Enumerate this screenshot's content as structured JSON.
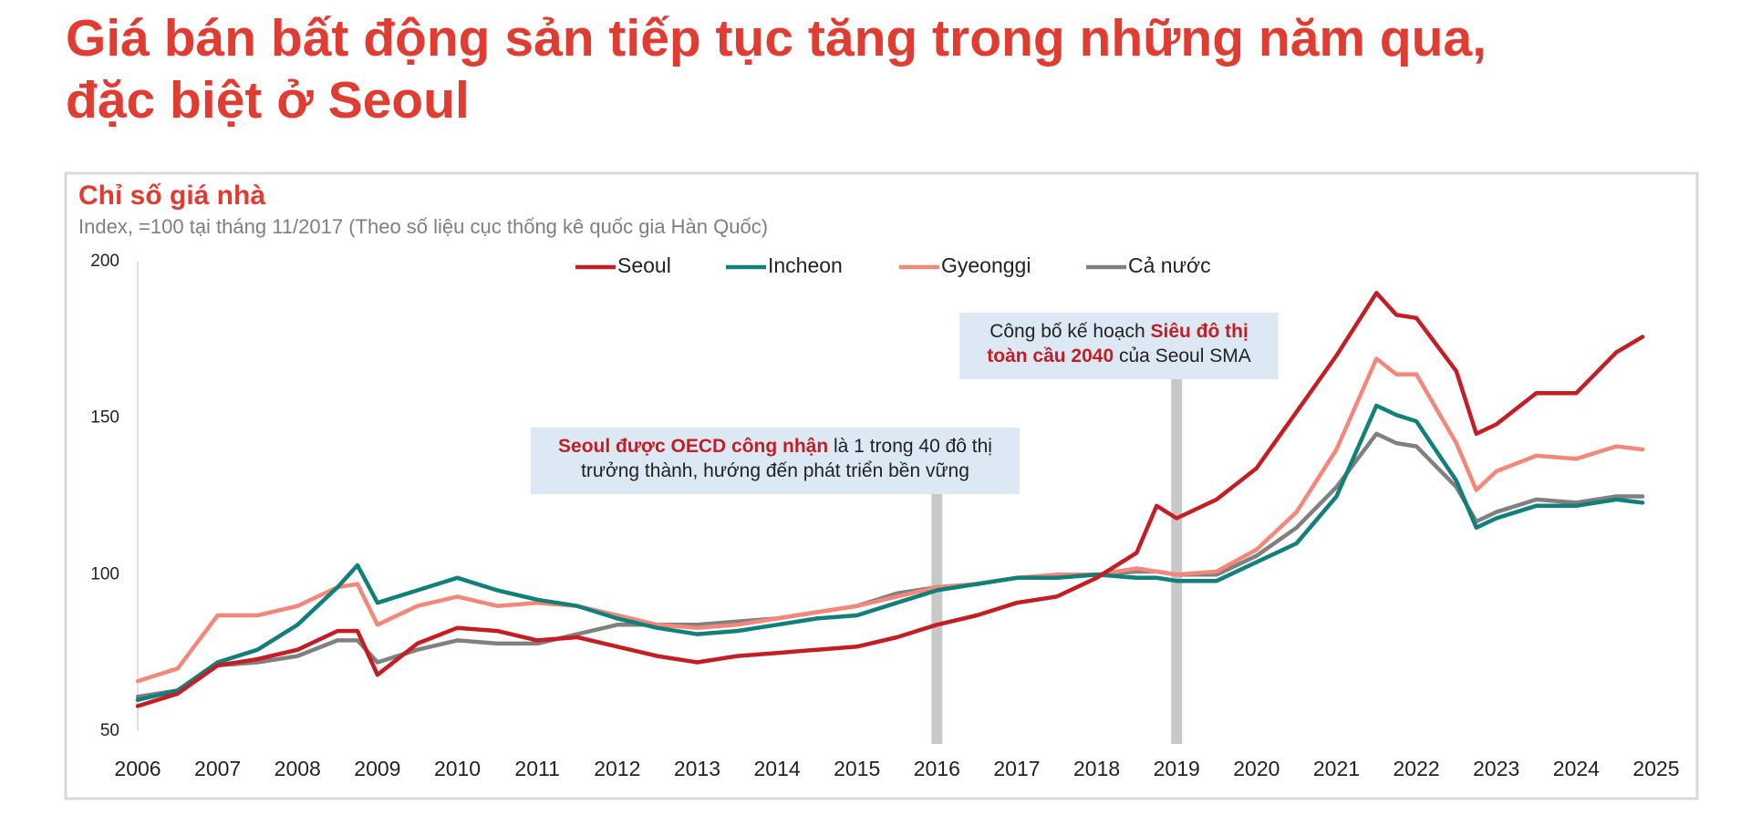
{
  "headline": [
    "Giá bán bất động sản tiếp tục tăng trong những năm qua,",
    "đặc biệt ở Seoul"
  ],
  "chart_data": {
    "type": "line",
    "title": "Chỉ số giá nhà",
    "subtitle": "Index, =100 tại tháng 11/2017 (Theo số liệu cục thống kê quốc gia Hàn Quốc)",
    "x": [
      2006,
      2006.5,
      2007,
      2007.5,
      2008,
      2008.5,
      2008.75,
      2009,
      2009.5,
      2010,
      2010.5,
      2011,
      2011.5,
      2012,
      2012.5,
      2013,
      2013.5,
      2014,
      2014.5,
      2015,
      2015.5,
      2016,
      2016.5,
      2017,
      2017.5,
      2018,
      2018.5,
      2018.75,
      2019,
      2019.5,
      2020,
      2020.5,
      2021,
      2021.5,
      2021.75,
      2022,
      2022.5,
      2022.75,
      2023,
      2023.5,
      2024,
      2024.5,
      2024.83
    ],
    "series": [
      {
        "name": "Seoul",
        "color": "#c41e24",
        "values": [
          58,
          62,
          71,
          73,
          76,
          82,
          82,
          68,
          78,
          83,
          82,
          79,
          80,
          77,
          74,
          72,
          74,
          75,
          76,
          77,
          80,
          84,
          87,
          91,
          93,
          99,
          107,
          122,
          118,
          124,
          134,
          152,
          170,
          190,
          183,
          182,
          165,
          145,
          148,
          158,
          158,
          171,
          176
        ]
      },
      {
        "name": "Incheon",
        "color": "#11807a",
        "values": [
          60,
          63,
          72,
          76,
          84,
          96,
          103,
          91,
          95,
          99,
          95,
          92,
          90,
          86,
          83,
          81,
          82,
          84,
          86,
          87,
          91,
          95,
          97,
          99,
          99,
          100,
          99,
          99,
          98,
          98,
          104,
          110,
          125,
          154,
          151,
          149,
          130,
          115,
          118,
          122,
          122,
          124,
          123
        ]
      },
      {
        "name": "Gyeonggi",
        "color": "#f4877a",
        "values": [
          66,
          70,
          87,
          87,
          90,
          96,
          97,
          84,
          90,
          93,
          90,
          91,
          90,
          87,
          84,
          83,
          84,
          86,
          88,
          90,
          93,
          96,
          97,
          99,
          100,
          100,
          102,
          101,
          100,
          101,
          108,
          120,
          140,
          169,
          164,
          164,
          142,
          127,
          133,
          138,
          137,
          141,
          140
        ]
      },
      {
        "name": "Cả nước",
        "color": "#808080",
        "values": [
          61,
          63,
          71,
          72,
          74,
          79,
          79,
          72,
          76,
          79,
          78,
          78,
          81,
          84,
          84,
          84,
          85,
          86,
          88,
          90,
          94,
          96,
          97,
          99,
          99,
          100,
          101,
          101,
          100,
          100,
          106,
          115,
          128,
          145,
          142,
          141,
          128,
          117,
          120,
          124,
          123,
          125,
          125
        ]
      }
    ],
    "xlim": [
      2006,
      2025
    ],
    "xticks": [
      2006,
      2007,
      2008,
      2009,
      2010,
      2011,
      2012,
      2013,
      2014,
      2015,
      2016,
      2017,
      2018,
      2019,
      2020,
      2021,
      2022,
      2023,
      2024,
      2025
    ],
    "ylim": [
      50,
      200
    ],
    "yticks": [
      50,
      100,
      150,
      200
    ],
    "annotations": [
      {
        "x": 2016,
        "lines": [
          [
            {
              "text": "Seoul được OECD công nhận",
              "highlight": true
            },
            {
              "text": " là 1 trong 40 đô thị",
              "highlight": false
            }
          ],
          [
            {
              "text": "trưởng thành, hướng đến phát triển bền vững",
              "highlight": false
            }
          ]
        ]
      },
      {
        "x": 2019,
        "lines": [
          [
            {
              "text": "Công bố kế hoạch ",
              "highlight": false
            },
            {
              "text": "Siêu đô thị",
              "highlight": true
            }
          ],
          [
            {
              "text": "toàn cầu 2040",
              "highlight": true
            },
            {
              "text": " của Seoul SMA",
              "highlight": false
            }
          ]
        ]
      }
    ]
  }
}
